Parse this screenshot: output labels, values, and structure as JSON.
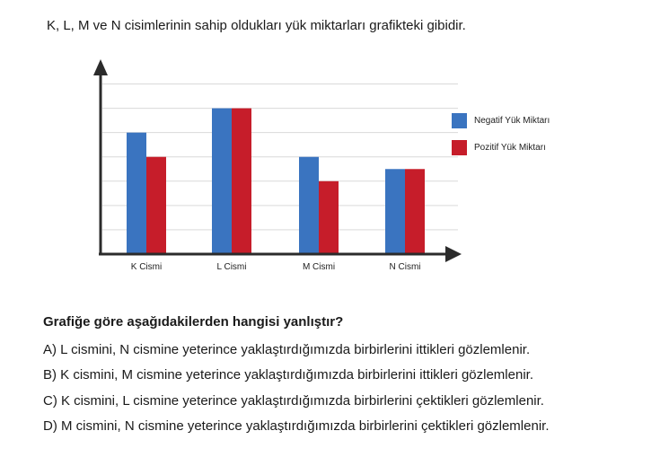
{
  "intro": "K, L, M ve N cisimlerinin sahip oldukları yük miktarları grafikteki gibidir.",
  "question": "Grafiğe göre aşağıdakilerden hangisi yanlıştır?",
  "options": [
    "A) L cismini, N cismine yeterince yaklaştırdığımızda birbirlerini ittikleri gözlemlenir.",
    "B) K cismini, M cismine yeterince yaklaştırdığımızda birbirlerini ittikleri gözlemlenir.",
    "C) K cismini, L cismine yeterince yaklaştırdığımızda birbirlerini çektikleri gözlemlenir.",
    "D) M cismini, N cismine yeterince yaklaştırdığımızda birbirlerini çektikleri gözlemlenir."
  ],
  "chart_data": {
    "type": "bar",
    "title": "",
    "xlabel": "",
    "ylabel": "",
    "categories": [
      "K Cismi",
      "L Cismi",
      "M Cismi",
      "N Cismi"
    ],
    "series": [
      {
        "name": "Negatif Yük Miktarı",
        "color": "#3a74c0",
        "values": [
          5,
          6,
          4,
          3.5
        ]
      },
      {
        "name": "Pozitif Yük Miktarı",
        "color": "#c61d2a",
        "values": [
          4,
          6,
          3,
          3.5
        ]
      }
    ],
    "ylim": [
      0,
      7.5
    ],
    "grid": true,
    "legend": "right"
  }
}
